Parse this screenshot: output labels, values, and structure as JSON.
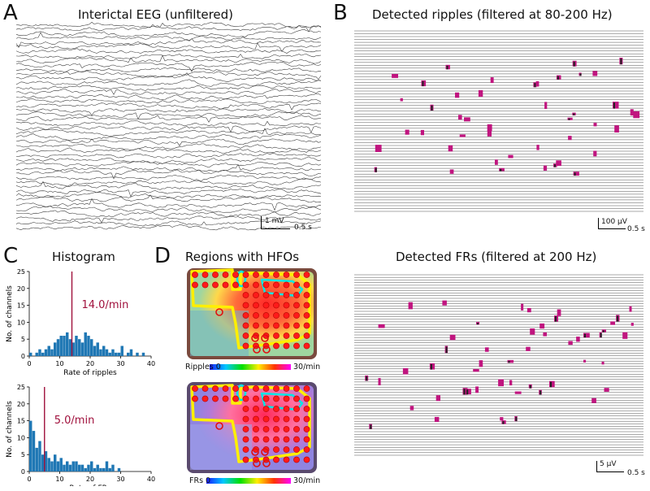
{
  "figure": {
    "panels": {
      "a": {
        "letter": "A",
        "title": "Interictal EEG (unfiltered)",
        "scale_amp": "1 mV",
        "scale_time": "0.5 s"
      },
      "b": {
        "letter": "B",
        "title": "Detected ripples (filtered at 80-200 Hz)",
        "scale_amp": "100 μV",
        "scale_time": "0.5 s"
      },
      "c": {
        "letter": "C",
        "title": "Histogram"
      },
      "d": {
        "letter": "D",
        "title": "Regions with HFOs",
        "colorbar_ripples": {
          "left": "Ripples 0",
          "right": "30/min"
        },
        "colorbar_frs": {
          "left": "FRs 0",
          "right": "30/min"
        }
      },
      "e": {
        "title": "Detected FRs (filtered at 200 Hz)",
        "scale_amp": "5 μV",
        "scale_time": "0.5 s"
      }
    },
    "colors": {
      "accent": "#a0103c",
      "bars": "#1f77b4",
      "hfo": "#c0157f"
    }
  },
  "chart_data": [
    {
      "type": "bar",
      "title": "Histogram",
      "xlabel": "Rate of ripples",
      "ylabel": "No. of channels",
      "xlim": [
        0,
        40
      ],
      "ylim": [
        0,
        25
      ],
      "xticks": [
        0,
        10,
        20,
        30,
        40
      ],
      "yticks": [
        0,
        5,
        10,
        15,
        20,
        25
      ],
      "bin_width": 1,
      "bin_starts": [
        0,
        1,
        2,
        3,
        4,
        5,
        6,
        7,
        8,
        9,
        10,
        11,
        12,
        13,
        14,
        15,
        16,
        17,
        18,
        19,
        20,
        21,
        22,
        23,
        24,
        25,
        26,
        27,
        28,
        29,
        30,
        31,
        32,
        33,
        34,
        35,
        36,
        37,
        38,
        39
      ],
      "values": [
        1,
        0,
        1,
        2,
        1,
        2,
        3,
        2,
        4,
        5,
        6,
        6,
        7,
        5,
        4,
        6,
        5,
        4,
        7,
        6,
        5,
        3,
        4,
        2,
        3,
        2,
        1,
        2,
        1,
        1,
        3,
        0,
        1,
        2,
        0,
        1,
        0,
        1,
        0,
        0
      ],
      "mean_line": 14.0,
      "mean_label": "14.0/min"
    },
    {
      "type": "bar",
      "xlabel": "Rate of FRs",
      "ylabel": "No. of channels",
      "xlim": [
        0,
        40
      ],
      "ylim": [
        0,
        25
      ],
      "xticks": [
        0,
        10,
        20,
        30,
        40
      ],
      "yticks": [
        0,
        5,
        10,
        15,
        20,
        25
      ],
      "bin_width": 1,
      "bin_starts": [
        0,
        1,
        2,
        3,
        4,
        5,
        6,
        7,
        8,
        9,
        10,
        11,
        12,
        13,
        14,
        15,
        16,
        17,
        18,
        19,
        20,
        21,
        22,
        23,
        24,
        25,
        26,
        27,
        28,
        29,
        30,
        31,
        32,
        33,
        34,
        35,
        36,
        37,
        38,
        39
      ],
      "values": [
        15,
        12,
        7,
        9,
        5,
        6,
        4,
        3,
        5,
        3,
        4,
        2,
        3,
        2,
        3,
        3,
        2,
        2,
        1,
        2,
        3,
        1,
        2,
        1,
        1,
        3,
        1,
        2,
        0,
        1,
        0,
        0,
        0,
        0,
        0,
        0,
        0,
        0,
        0,
        0
      ],
      "mean_line": 5.0,
      "mean_label": "5.0/min"
    }
  ]
}
